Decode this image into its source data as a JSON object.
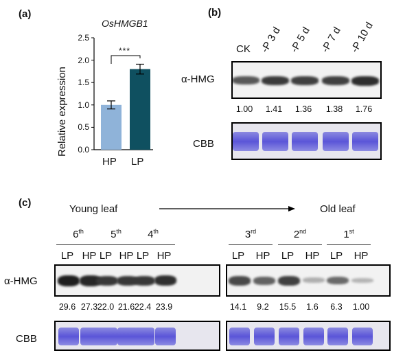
{
  "panel_a": {
    "label": "(a)",
    "chart_data": {
      "type": "bar",
      "title": "OsHMGB1",
      "ylabel": "Relative expression",
      "categories": [
        "HP",
        "LP"
      ],
      "values": [
        1.0,
        1.8
      ],
      "errors": [
        0.09,
        0.11
      ],
      "ylim": [
        0,
        2.5
      ],
      "yticks": [
        "0.0",
        "0.5",
        "1.0",
        "1.5",
        "2.0",
        "2.5"
      ],
      "significance": "***",
      "colors": [
        "#8fb3d9",
        "#0f5060"
      ]
    }
  },
  "panel_b": {
    "label": "(b)",
    "lanes": [
      "CK",
      "-P 3 d",
      "-P 5 d",
      "-P 7 d",
      "-P 10 d"
    ],
    "row_hmg": "α-HMG",
    "row_cbb": "CBB",
    "values": [
      "1.00",
      "1.41",
      "1.36",
      "1.38",
      "1.76"
    ],
    "intensity": [
      0.6,
      0.85,
      0.8,
      0.8,
      0.95
    ]
  },
  "panel_c": {
    "label": "(c)",
    "young": "Young leaf",
    "old": "Old leaf",
    "stages": [
      {
        "num": "6",
        "sup": "th"
      },
      {
        "num": "5",
        "sup": "th"
      },
      {
        "num": "4",
        "sup": "th"
      },
      {
        "num": "3",
        "sup": "rd"
      },
      {
        "num": "2",
        "sup": "nd"
      },
      {
        "num": "1",
        "sup": "st"
      }
    ],
    "lanes": [
      "LP",
      "HP",
      "LP",
      "HP",
      "LP",
      "HP",
      "LP",
      "HP",
      "LP",
      "HP",
      "LP",
      "HP"
    ],
    "row_hmg": "α-HMG",
    "row_cbb": "CBB",
    "values": [
      "29.6",
      "27.3",
      "22.0",
      "21.6",
      "22.4",
      "23.9",
      "14.1",
      "9.2",
      "15.5",
      "1.6",
      "6.3",
      "1.00"
    ],
    "intensity": [
      1.0,
      0.95,
      0.85,
      0.85,
      0.85,
      0.9,
      0.75,
      0.6,
      0.8,
      0.15,
      0.55,
      0.12
    ]
  }
}
